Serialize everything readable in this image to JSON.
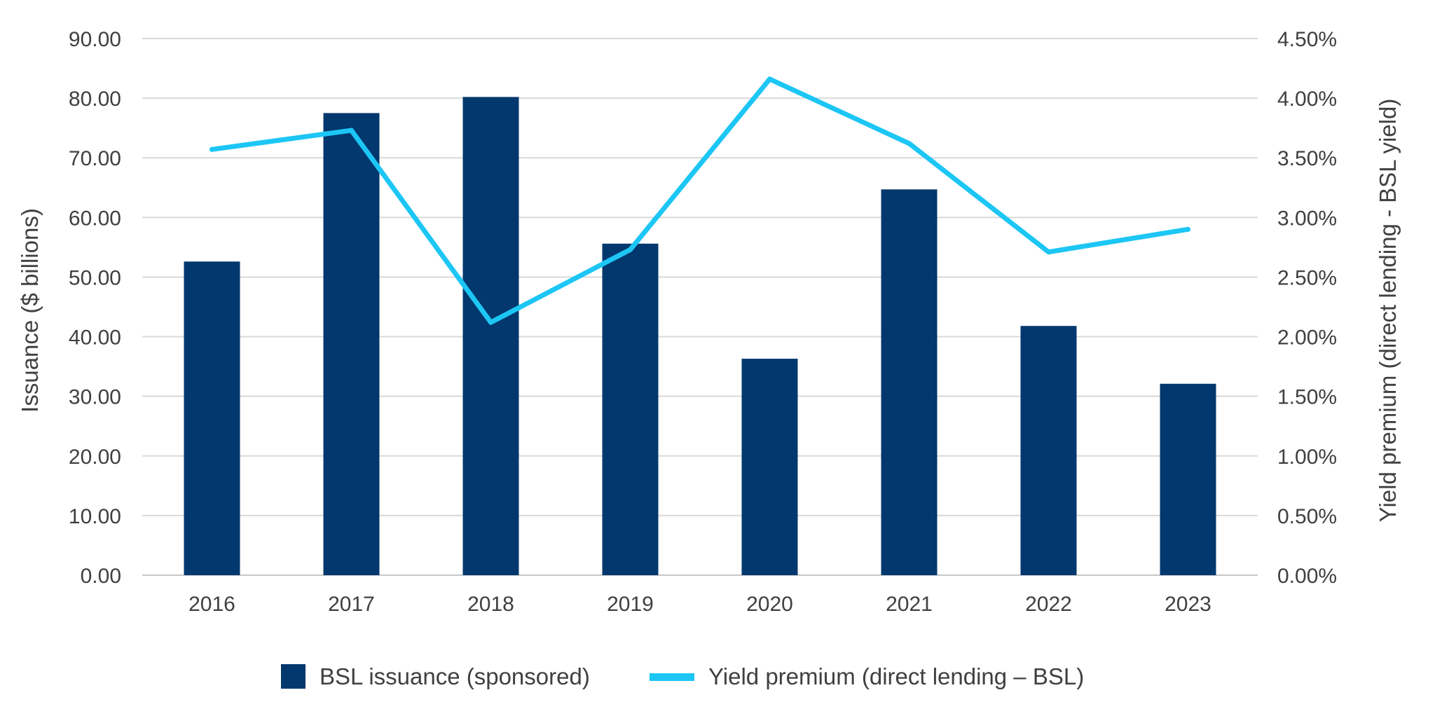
{
  "chart_data": {
    "type": "bar",
    "categories": [
      "2016",
      "2017",
      "2018",
      "2019",
      "2020",
      "2021",
      "2022",
      "2023"
    ],
    "series": [
      {
        "name": "BSL issuance (sponsored)",
        "type": "bar",
        "axis": "left",
        "color": "#03386E",
        "values": [
          52.6,
          77.5,
          80.2,
          55.6,
          36.3,
          64.7,
          41.8,
          32.1
        ]
      },
      {
        "name": "Yield premium (direct lending – BSL)",
        "type": "line",
        "axis": "right",
        "color": "#1CC6F5",
        "values": [
          3.57,
          3.73,
          2.12,
          2.73,
          4.16,
          3.62,
          2.71,
          2.9
        ]
      }
    ],
    "y_left": {
      "label": "Issuance ($ billions)",
      "range": [
        0,
        90
      ],
      "ticks": [
        "0.00",
        "10.00",
        "20.00",
        "30.00",
        "40.00",
        "50.00",
        "60.00",
        "70.00",
        "80.00",
        "90.00"
      ]
    },
    "y_right": {
      "label": "Yield premium (direct lending - BSL yield)",
      "unit": "%",
      "range": [
        0,
        4.5
      ],
      "ticks": [
        "0.00%",
        "0.50%",
        "1.00%",
        "1.50%",
        "2.00%",
        "2.50%",
        "3.00%",
        "3.50%",
        "4.00%",
        "4.50%"
      ]
    },
    "grid": true,
    "legend_position": "bottom"
  }
}
